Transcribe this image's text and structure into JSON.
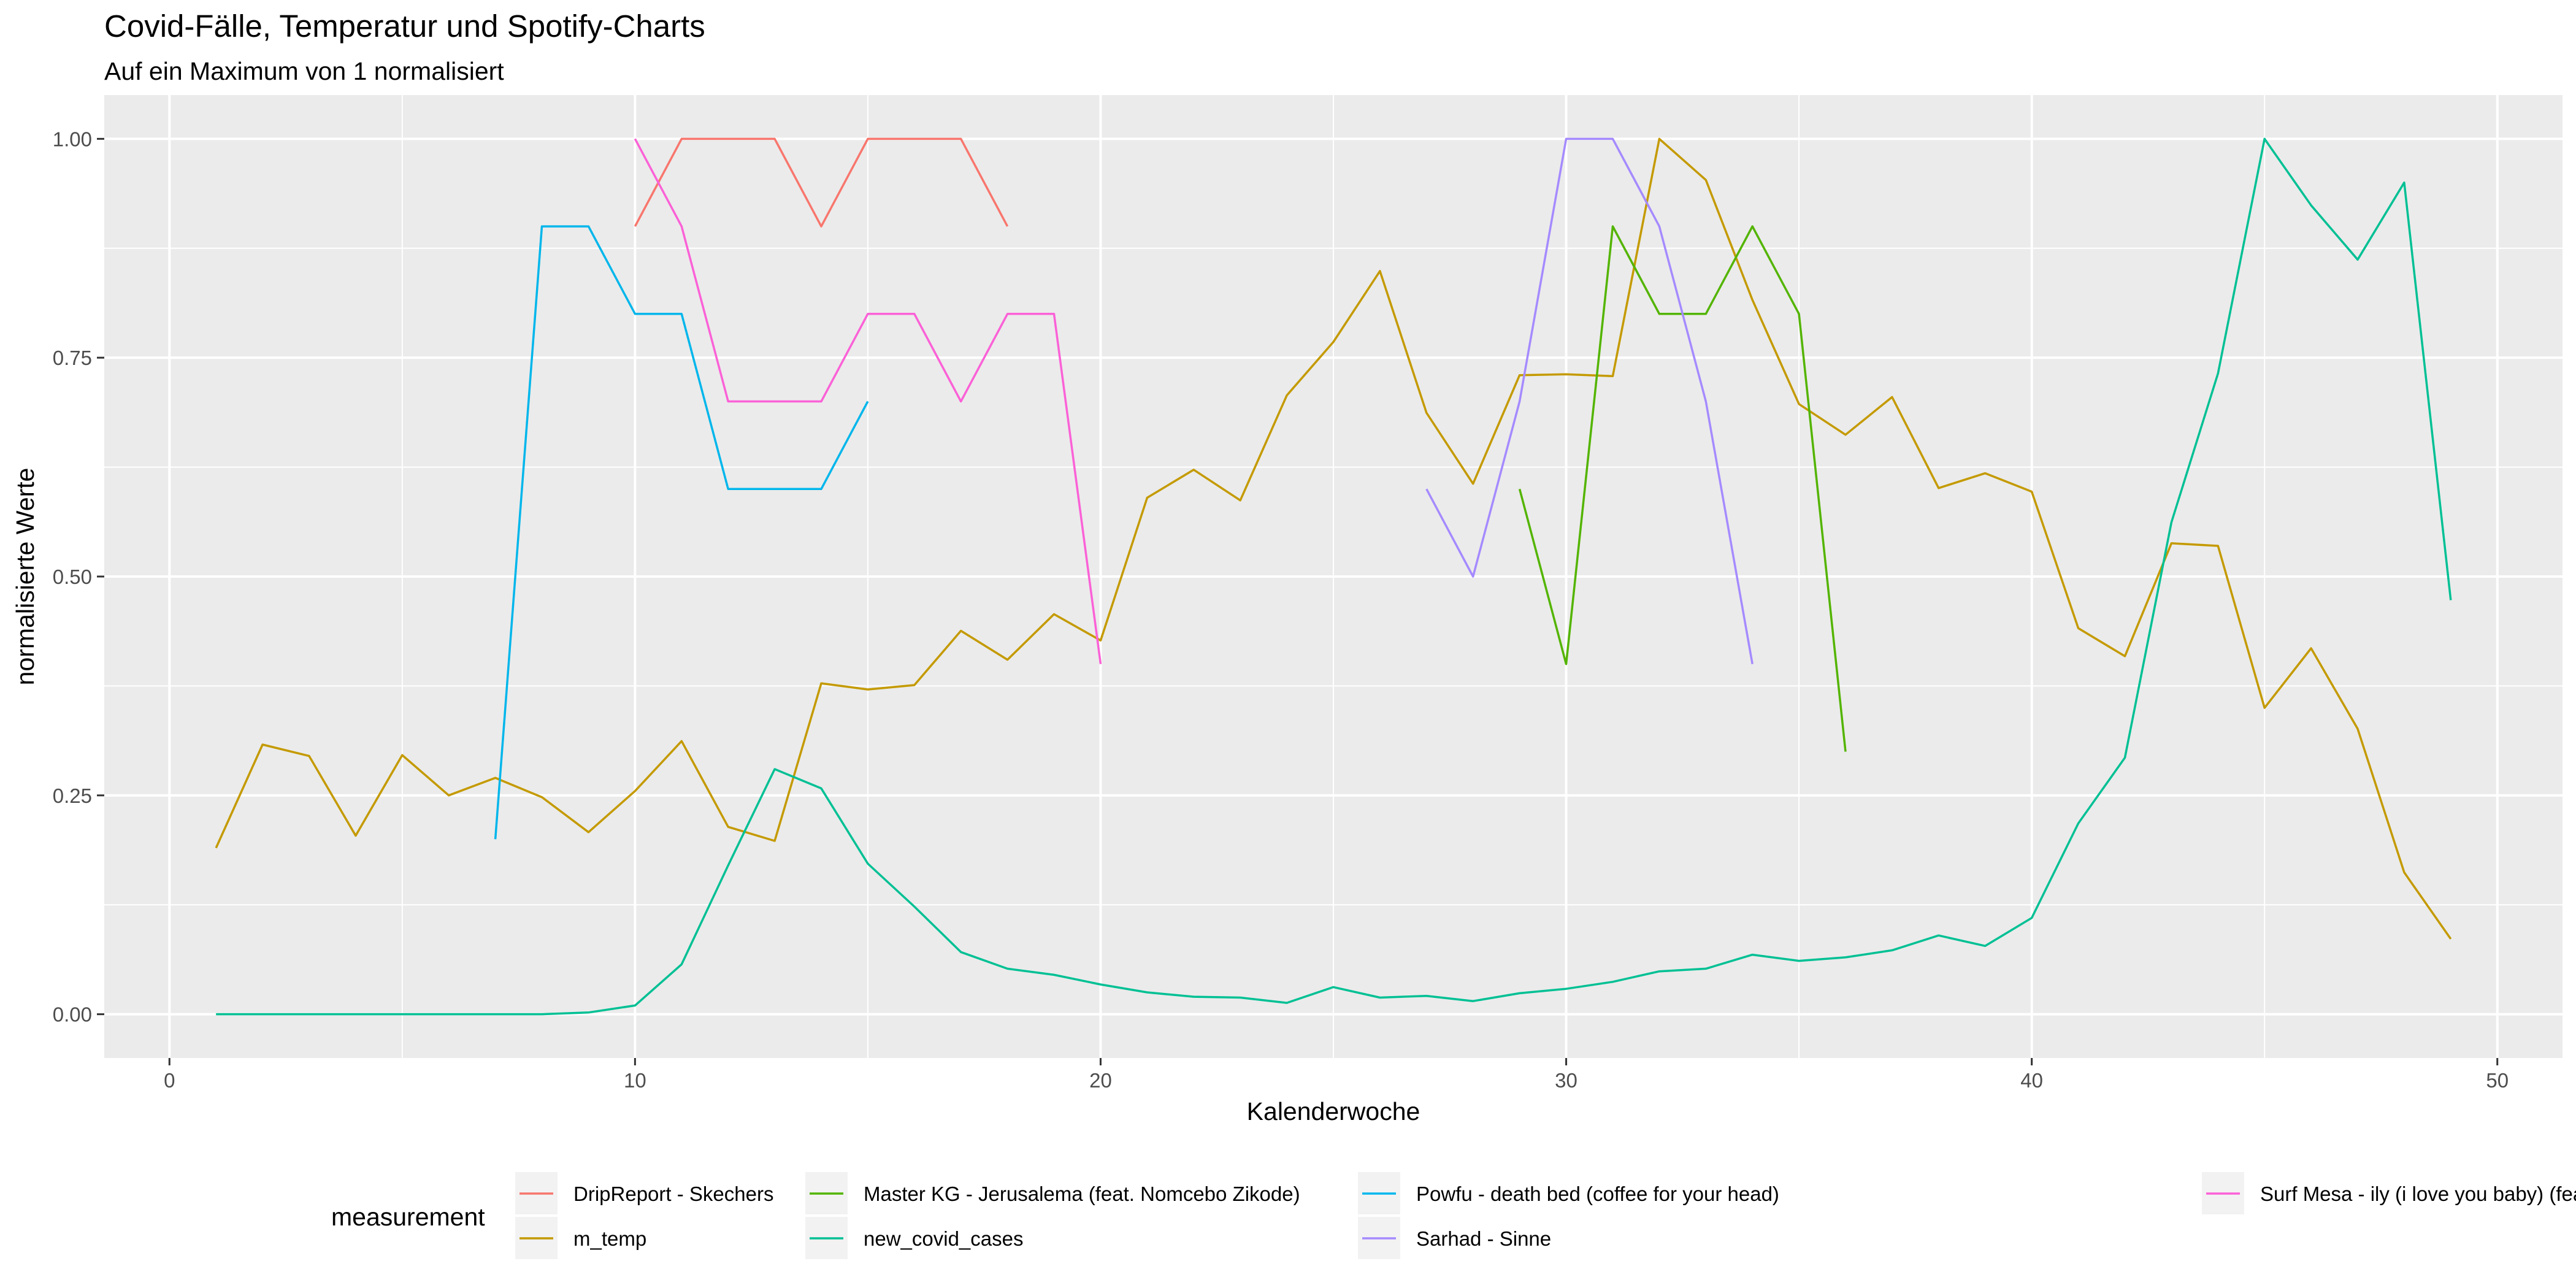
{
  "chart_data": {
    "type": "line",
    "title": "Covid-Fälle, Temperatur und Spotify-Charts",
    "subtitle": "Auf ein Maximum von 1 normalisiert",
    "xlabel": "Kalenderwoche",
    "ylabel": "normalisierte Werte",
    "xlim": [
      -1.4,
      51.4
    ],
    "ylim": [
      -0.05,
      1.05
    ],
    "x_ticks": [
      0,
      10,
      20,
      30,
      40,
      50
    ],
    "x_tick_labels": [
      "0",
      "10",
      "20",
      "30",
      "40",
      "50"
    ],
    "y_ticks": [
      0,
      0.25,
      0.5,
      0.75,
      1.0
    ],
    "y_tick_labels": [
      "0.00",
      "0.25",
      "0.50",
      "0.75",
      "1.00"
    ],
    "grid": true,
    "legend": {
      "title": "measurement",
      "position": "bottom",
      "order": [
        "DripReport - Skechers",
        "m_temp",
        "Master KG - Jerusalema (feat. Nomcebo Zikode)",
        "new_covid_cases",
        "Powfu - death bed (coffee for your head)",
        "Sarhad - Sinne",
        "Surf Mesa - ily (i love you baby) (feat. Emilee)"
      ]
    },
    "series": [
      {
        "name": "DripReport - Skechers",
        "color": "#F8766D",
        "x": [
          10,
          11,
          12,
          13,
          14,
          15,
          16,
          17,
          18
        ],
        "y": [
          0.9,
          1.0,
          1.0,
          1.0,
          0.9,
          1.0,
          1.0,
          1.0,
          0.9
        ]
      },
      {
        "name": "m_temp",
        "color": "#C49A00",
        "x": [
          1,
          2,
          3,
          4,
          5,
          6,
          7,
          8,
          9,
          10,
          11,
          12,
          13,
          14,
          15,
          16,
          17,
          18,
          19,
          20,
          21,
          22,
          23,
          24,
          25,
          26,
          27,
          28,
          29,
          30,
          31,
          32,
          33,
          34,
          35,
          36,
          37,
          38,
          39,
          40,
          41,
          42,
          43,
          44,
          45,
          46,
          47,
          48,
          49
        ],
        "y": [
          0.19,
          0.308,
          0.295,
          0.204,
          0.296,
          0.25,
          0.27,
          0.248,
          0.208,
          0.255,
          0.312,
          0.214,
          0.198,
          0.378,
          0.371,
          0.376,
          0.438,
          0.405,
          0.457,
          0.427,
          0.59,
          0.622,
          0.587,
          0.707,
          0.768,
          0.849,
          0.687,
          0.606,
          0.73,
          0.731,
          0.729,
          1.0,
          0.953,
          0.816,
          0.697,
          0.662,
          0.705,
          0.601,
          0.618,
          0.597,
          0.441,
          0.409,
          0.538,
          0.535,
          0.35,
          0.418,
          0.326,
          0.162,
          0.086
        ]
      },
      {
        "name": "Master KG - Jerusalema (feat. Nomcebo Zikode)",
        "color": "#53B400",
        "x": [
          29,
          30,
          31,
          32,
          33,
          34,
          35,
          36
        ],
        "y": [
          0.6,
          0.4,
          0.9,
          0.8,
          0.8,
          0.9,
          0.8,
          0.3
        ]
      },
      {
        "name": "new_covid_cases",
        "color": "#00C094",
        "x": [
          1,
          2,
          3,
          4,
          5,
          6,
          7,
          8,
          9,
          10,
          11,
          12,
          13,
          14,
          15,
          16,
          17,
          18,
          19,
          20,
          21,
          22,
          23,
          24,
          25,
          26,
          27,
          28,
          29,
          30,
          31,
          32,
          33,
          34,
          35,
          36,
          37,
          38,
          39,
          40,
          41,
          42,
          43,
          44,
          45,
          46,
          47,
          48,
          49
        ],
        "y": [
          0.0,
          0.0,
          0.0,
          0.0,
          0.0,
          0.0,
          0.0,
          0.0,
          0.002,
          0.01,
          0.057,
          0.17,
          0.28,
          0.258,
          0.172,
          0.123,
          0.071,
          0.052,
          0.045,
          0.034,
          0.025,
          0.02,
          0.019,
          0.013,
          0.031,
          0.019,
          0.021,
          0.015,
          0.024,
          0.029,
          0.037,
          0.049,
          0.052,
          0.068,
          0.061,
          0.065,
          0.073,
          0.09,
          0.078,
          0.11,
          0.218,
          0.293,
          0.562,
          0.732,
          1.0,
          0.924,
          0.862,
          0.95,
          0.473
        ]
      },
      {
        "name": "Powfu - death bed (coffee for your head)",
        "color": "#00B6EB",
        "x": [
          7,
          8,
          9,
          10,
          11,
          12,
          13,
          14,
          15
        ],
        "y": [
          0.2,
          0.9,
          0.9,
          0.8,
          0.8,
          0.6,
          0.6,
          0.6,
          0.7
        ]
      },
      {
        "name": "Sarhad - Sinne",
        "color": "#A58AFF",
        "x": [
          27,
          28,
          29,
          30,
          31,
          32,
          33,
          34
        ],
        "y": [
          0.6,
          0.5,
          0.7,
          1.0,
          1.0,
          0.9,
          0.7,
          0.4
        ]
      },
      {
        "name": "Surf Mesa - ily (i love you baby) (feat. Emilee)",
        "color": "#FB61D7",
        "x": [
          10,
          11,
          12,
          13,
          14,
          15,
          16,
          17,
          18,
          19,
          20
        ],
        "y": [
          1.0,
          0.9,
          0.7,
          0.7,
          0.7,
          0.8,
          0.8,
          0.7,
          0.8,
          0.8,
          0.4
        ]
      }
    ]
  }
}
